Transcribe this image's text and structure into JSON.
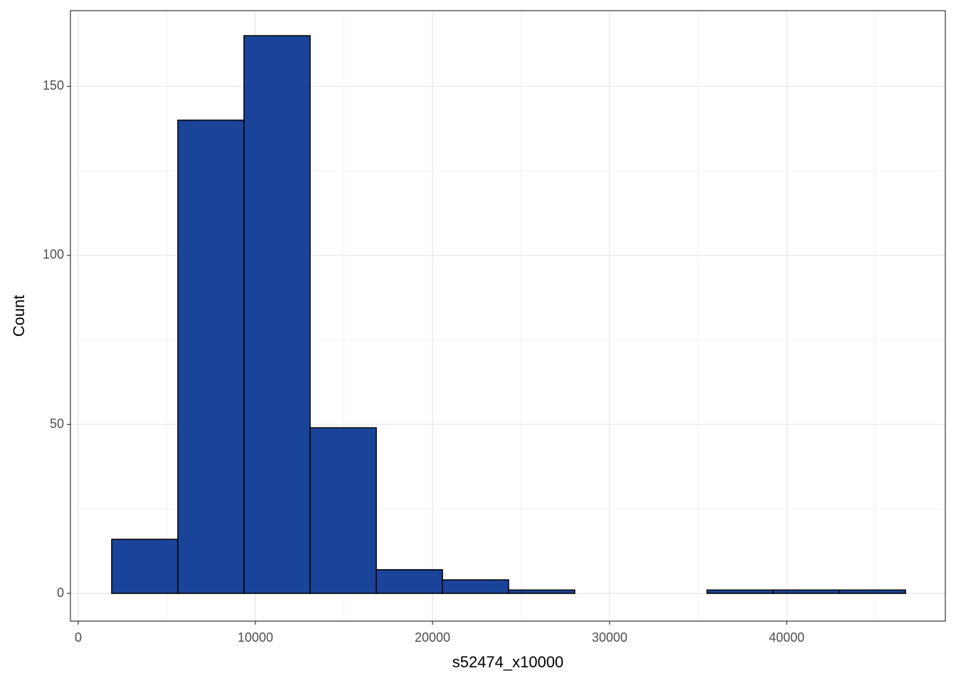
{
  "chart_data": {
    "type": "histogram",
    "x_label": "s52474_x10000",
    "y_label": "Count",
    "bins": [
      1888,
      5623,
      9358,
      13093,
      16828,
      20563,
      24298,
      28033,
      31768,
      35503,
      39238,
      42973,
      46708
    ],
    "values": [
      16,
      140,
      165,
      49,
      7,
      4,
      1,
      0,
      0,
      1,
      1,
      1
    ],
    "color": "#1a4499",
    "edge_color": "#000000",
    "xlim": [
      -442,
      48956
    ],
    "ylim": [
      -8.2,
      172.4
    ],
    "xticks": [
      0,
      10000,
      20000,
      30000,
      40000
    ],
    "yticks": [
      0,
      50,
      100,
      150
    ],
    "xminor": [
      5000,
      15000,
      25000,
      35000,
      45000
    ],
    "yminor": [
      25,
      75,
      125
    ],
    "grid": true
  }
}
